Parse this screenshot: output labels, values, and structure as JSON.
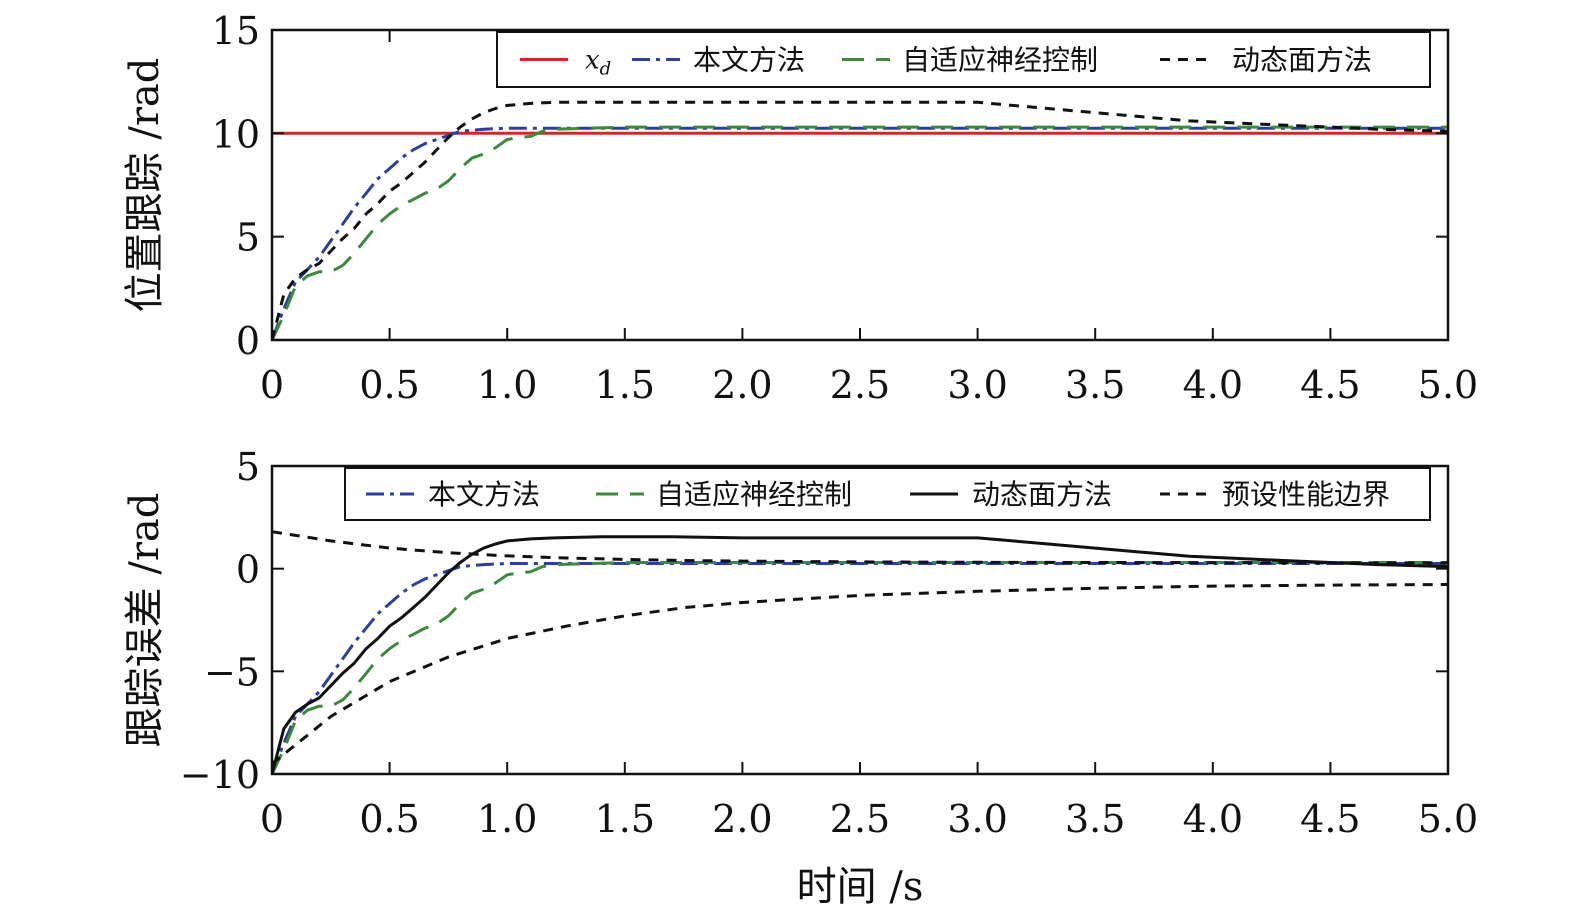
{
  "chart_data": [
    {
      "type": "line",
      "ylabel": "位置跟踪 /rad",
      "xlabel": "",
      "xlim": [
        0,
        5
      ],
      "ylim": [
        0,
        15
      ],
      "xticks": [
        "0",
        "0.5",
        "1.0",
        "1.5",
        "2.0",
        "2.5",
        "3.0",
        "3.5",
        "4.0",
        "4.5",
        "5.0"
      ],
      "yticks": [
        "0",
        "5",
        "10",
        "15"
      ],
      "legend_position": "top-right",
      "series": [
        {
          "name": "x_d",
          "color": "#d62728",
          "style": "solid",
          "x": [
            0,
            5
          ],
          "y": [
            10,
            10
          ]
        },
        {
          "name": "本文方法",
          "color": "#2b3f9e",
          "style": "dashdot",
          "x": [
            0,
            0.05,
            0.1,
            0.15,
            0.2,
            0.25,
            0.3,
            0.35,
            0.4,
            0.45,
            0.5,
            0.55,
            0.6,
            0.65,
            0.7,
            0.75,
            0.8,
            0.9,
            1.0,
            1.2,
            1.5,
            2.0,
            2.5,
            3.0,
            3.5,
            4.0,
            4.5,
            5.0
          ],
          "y": [
            0,
            1.5,
            2.8,
            3.4,
            4.0,
            4.8,
            5.6,
            6.4,
            7.1,
            7.8,
            8.3,
            8.8,
            9.2,
            9.5,
            9.7,
            9.9,
            10.1,
            10.2,
            10.25,
            10.25,
            10.25,
            10.25,
            10.25,
            10.25,
            10.25,
            10.25,
            10.25,
            10.25
          ]
        },
        {
          "name": "自适应神经控制",
          "color": "#3a8a3a",
          "style": "dashed",
          "x": [
            0,
            0.05,
            0.1,
            0.15,
            0.2,
            0.25,
            0.3,
            0.35,
            0.4,
            0.45,
            0.5,
            0.55,
            0.6,
            0.65,
            0.7,
            0.75,
            0.8,
            0.85,
            0.9,
            0.95,
            1.0,
            1.05,
            1.1,
            1.15,
            1.2,
            1.5,
            2.0,
            2.5,
            3.0,
            3.5,
            4.0,
            4.5,
            5.0
          ],
          "y": [
            0,
            1.2,
            2.6,
            3.1,
            3.3,
            3.3,
            3.6,
            4.2,
            4.9,
            5.6,
            6.1,
            6.5,
            6.8,
            7.1,
            7.3,
            7.7,
            8.3,
            8.8,
            9.0,
            9.3,
            9.7,
            9.8,
            9.85,
            10.1,
            10.2,
            10.3,
            10.3,
            10.3,
            10.3,
            10.3,
            10.3,
            10.3,
            10.3
          ]
        },
        {
          "name": "动态面方法",
          "color": "#111111",
          "style": "dotted",
          "x": [
            0,
            0.05,
            0.1,
            0.15,
            0.2,
            0.25,
            0.3,
            0.35,
            0.4,
            0.45,
            0.5,
            0.55,
            0.6,
            0.65,
            0.7,
            0.75,
            0.8,
            0.85,
            0.9,
            0.95,
            1.0,
            1.1,
            1.2,
            1.5,
            2.0,
            2.5,
            3.0,
            3.1,
            3.3,
            3.5,
            3.7,
            3.9,
            4.1,
            4.3,
            4.5,
            4.7,
            5.0
          ],
          "y": [
            0,
            2.2,
            3.0,
            3.4,
            3.7,
            4.3,
            4.9,
            5.4,
            6.1,
            6.6,
            7.2,
            7.6,
            8.1,
            8.6,
            9.2,
            9.8,
            10.3,
            10.7,
            11.0,
            11.2,
            11.35,
            11.45,
            11.5,
            11.5,
            11.5,
            11.5,
            11.5,
            11.4,
            11.2,
            11.0,
            10.8,
            10.6,
            10.5,
            10.4,
            10.3,
            10.2,
            10.1
          ]
        }
      ]
    },
    {
      "type": "line",
      "ylabel": "跟踪误差 /rad",
      "xlabel": "时间 /s",
      "xlim": [
        0,
        5
      ],
      "ylim": [
        -10,
        5
      ],
      "xticks": [
        "0",
        "0.5",
        "1.0",
        "1.5",
        "2.0",
        "2.5",
        "3.0",
        "3.5",
        "4.0",
        "4.5",
        "5.0"
      ],
      "yticks": [
        "−10",
        "−5",
        "0",
        "5"
      ],
      "legend_position": "top-right",
      "series": [
        {
          "name": "本文方法",
          "color": "#2b3f9e",
          "style": "dashdot",
          "x": [
            0,
            0.05,
            0.1,
            0.15,
            0.2,
            0.25,
            0.3,
            0.35,
            0.4,
            0.45,
            0.5,
            0.55,
            0.6,
            0.65,
            0.7,
            0.75,
            0.8,
            0.9,
            1.0,
            1.2,
            1.5,
            2.0,
            2.5,
            3.0,
            3.5,
            4.0,
            4.5,
            5.0
          ],
          "y": [
            -10,
            -8.5,
            -7.2,
            -6.6,
            -6.0,
            -5.2,
            -4.4,
            -3.6,
            -2.9,
            -2.2,
            -1.7,
            -1.2,
            -0.8,
            -0.5,
            -0.3,
            -0.1,
            0.1,
            0.2,
            0.25,
            0.25,
            0.25,
            0.25,
            0.25,
            0.25,
            0.25,
            0.25,
            0.25,
            0.25
          ]
        },
        {
          "name": "自适应神经控制",
          "color": "#3a8a3a",
          "style": "dashed",
          "x": [
            0,
            0.05,
            0.1,
            0.15,
            0.2,
            0.25,
            0.3,
            0.35,
            0.4,
            0.45,
            0.5,
            0.55,
            0.6,
            0.65,
            0.7,
            0.75,
            0.8,
            0.85,
            0.9,
            0.95,
            1.0,
            1.05,
            1.1,
            1.15,
            1.2,
            1.5,
            2.0,
            2.5,
            3.0,
            3.5,
            4.0,
            4.5,
            5.0
          ],
          "y": [
            -10,
            -8.8,
            -7.4,
            -6.9,
            -6.7,
            -6.7,
            -6.4,
            -5.8,
            -5.1,
            -4.4,
            -3.9,
            -3.5,
            -3.2,
            -2.9,
            -2.7,
            -2.3,
            -1.7,
            -1.2,
            -1.0,
            -0.7,
            -0.3,
            -0.2,
            -0.15,
            0.1,
            0.2,
            0.3,
            0.3,
            0.3,
            0.3,
            0.3,
            0.3,
            0.3,
            0.3
          ]
        },
        {
          "name": "动态面方法",
          "color": "#111111",
          "style": "solid",
          "x": [
            0,
            0.05,
            0.1,
            0.15,
            0.2,
            0.25,
            0.3,
            0.35,
            0.4,
            0.45,
            0.5,
            0.55,
            0.6,
            0.65,
            0.7,
            0.75,
            0.8,
            0.85,
            0.9,
            0.95,
            1.0,
            1.1,
            1.2,
            1.4,
            1.7,
            2.0,
            2.5,
            3.0,
            3.1,
            3.3,
            3.5,
            3.7,
            3.9,
            4.1,
            4.3,
            4.5,
            4.7,
            5.0
          ],
          "y": [
            -10,
            -7.8,
            -7.0,
            -6.6,
            -6.3,
            -5.7,
            -5.1,
            -4.6,
            -3.9,
            -3.4,
            -2.8,
            -2.4,
            -1.9,
            -1.4,
            -0.8,
            -0.2,
            0.3,
            0.7,
            1.0,
            1.2,
            1.35,
            1.45,
            1.5,
            1.55,
            1.55,
            1.5,
            1.5,
            1.5,
            1.4,
            1.2,
            1.0,
            0.8,
            0.6,
            0.5,
            0.4,
            0.3,
            0.2,
            0.1
          ]
        },
        {
          "name": "预设性能边界",
          "color": "#111111",
          "style": "dotted",
          "x": [
            0,
            0.25,
            0.5,
            0.75,
            1.0,
            1.25,
            1.5,
            1.75,
            2.0,
            2.5,
            3.0,
            3.5,
            4.0,
            4.5,
            5.0
          ],
          "y": [
            1.8,
            1.35,
            1.0,
            0.78,
            0.62,
            0.52,
            0.45,
            0.4,
            0.37,
            0.33,
            0.31,
            0.3,
            0.29,
            0.28,
            0.28
          ]
        },
        {
          "name": "预设性能边界 (下界)",
          "legend": false,
          "color": "#111111",
          "style": "dotted",
          "x": [
            0,
            0.25,
            0.5,
            0.75,
            1.0,
            1.25,
            1.5,
            1.75,
            2.0,
            2.5,
            3.0,
            3.5,
            4.0,
            4.5,
            5.0
          ],
          "y": [
            -9.5,
            -7.2,
            -5.5,
            -4.3,
            -3.4,
            -2.8,
            -2.3,
            -1.9,
            -1.65,
            -1.3,
            -1.1,
            -0.95,
            -0.85,
            -0.8,
            -0.77
          ]
        }
      ]
    }
  ]
}
